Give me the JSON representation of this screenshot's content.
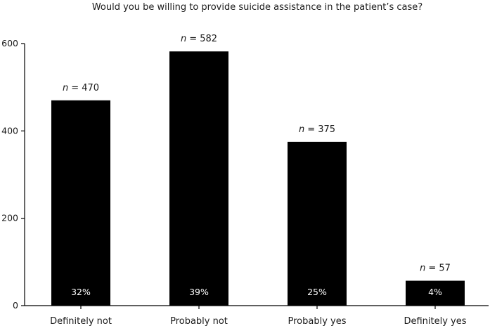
{
  "chart_data": {
    "type": "bar",
    "title": "Would you be willing to provide suicide assistance in the patient’s case?",
    "xlabel": "",
    "ylabel": "",
    "ylim": [
      0,
      600
    ],
    "yticks": [
      0,
      200,
      400,
      600
    ],
    "grid": false,
    "categories": [
      "Definitely not",
      "Probably not",
      "Probably yes",
      "Definitely yes"
    ],
    "values": [
      470,
      582,
      375,
      57
    ],
    "count_prefix": "n",
    "count_labels": [
      "= 470",
      "= 582",
      "= 375",
      "= 57"
    ],
    "percent_labels": [
      "32%",
      "39%",
      "25%",
      "4%"
    ],
    "bar_color": "#000000",
    "percent_label_color": "#ffffff"
  }
}
